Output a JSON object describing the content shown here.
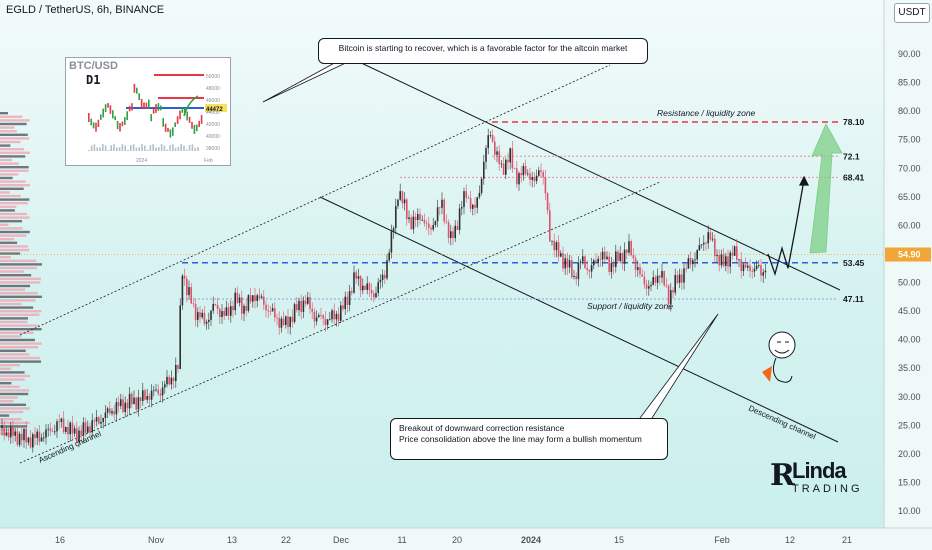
{
  "header": {
    "title": "EGLD / TetherUS, 6h, BINANCE",
    "currency": "USDT"
  },
  "annotations": {
    "top_callout": "Bitcoin is starting to recover, which is a favorable factor for the altcoin market",
    "bottom_callout_line1": "Breakout of downward correction resistance",
    "bottom_callout_line2": "Price consolidation above the line may form a bullish momentum",
    "resistance_zone": "Resistance / liquidity zone",
    "support_zone": "Support / liquidity zone",
    "ascending_channel": "Ascending channel",
    "descending_channel": "Descending channel"
  },
  "inset": {
    "title": "BTC/USD",
    "timeframe": "D1",
    "price_tag": "44472",
    "ticks": [
      "50000",
      "48000",
      "46000",
      "44000",
      "42000",
      "40000",
      "38000"
    ],
    "xlabels": [
      "2024",
      "Feb"
    ]
  },
  "logo": {
    "mark": "R",
    "line1": "Linda",
    "line2": "TRADING"
  },
  "colors": {
    "up": "#2f2f2f",
    "down": "#e0506a",
    "resistance": "#e53945",
    "support": "#2c5fd6",
    "current_price": "#f2a637",
    "arrow": "#7fcf86"
  },
  "chart_data": {
    "type": "candlestick",
    "y_axis": {
      "ticks": [
        "90.00",
        "85.00",
        "80.00",
        "75.00",
        "70.00",
        "65.00",
        "60.00",
        "55.00",
        "50.00",
        "45.00",
        "40.00",
        "35.00",
        "30.00",
        "25.00",
        "20.00",
        "15.00",
        "10.00"
      ],
      "current_price": "54.90"
    },
    "x_axis": {
      "ticks": [
        "16",
        "Nov",
        "13",
        "22",
        "Dec",
        "11",
        "20",
        "2024",
        "15",
        "Feb",
        "12",
        "21"
      ]
    },
    "levels": [
      {
        "label": "78.10",
        "value": 78.1,
        "style": "resistance"
      },
      {
        "label": "72.1",
        "value": 72.1,
        "style": "resistance-light"
      },
      {
        "label": "68.41",
        "value": 68.41,
        "style": "resistance-light"
      },
      {
        "label": "53.45",
        "value": 53.45,
        "style": "support"
      },
      {
        "label": "47.11",
        "value": 47.11,
        "style": "support-light"
      }
    ],
    "price_path": [
      [
        0,
        24.5
      ],
      [
        10,
        23.5
      ],
      [
        20,
        23.0
      ],
      [
        30,
        22.5
      ],
      [
        40,
        23.0
      ],
      [
        50,
        24.0
      ],
      [
        60,
        25.5
      ],
      [
        70,
        24.0
      ],
      [
        80,
        23.5
      ],
      [
        90,
        25.0
      ],
      [
        100,
        26.0
      ],
      [
        110,
        27.5
      ],
      [
        120,
        28.5
      ],
      [
        130,
        29.0
      ],
      [
        140,
        29.5
      ],
      [
        150,
        30.5
      ],
      [
        160,
        31.0
      ],
      [
        170,
        33.0
      ],
      [
        178,
        35.0
      ],
      [
        182,
        53.0
      ],
      [
        186,
        49.0
      ],
      [
        195,
        45.0
      ],
      [
        205,
        43.0
      ],
      [
        215,
        46.0
      ],
      [
        225,
        44.0
      ],
      [
        235,
        47.0
      ],
      [
        245,
        45.5
      ],
      [
        255,
        48.0
      ],
      [
        265,
        46.0
      ],
      [
        275,
        44.0
      ],
      [
        285,
        42.5
      ],
      [
        295,
        45.0
      ],
      [
        305,
        47.0
      ],
      [
        315,
        44.0
      ],
      [
        325,
        43.5
      ],
      [
        335,
        44.0
      ],
      [
        345,
        46.0
      ],
      [
        355,
        51.0
      ],
      [
        365,
        49.0
      ],
      [
        375,
        48.0
      ],
      [
        385,
        52.0
      ],
      [
        392,
        58.0
      ],
      [
        398,
        66.0
      ],
      [
        405,
        63.0
      ],
      [
        412,
        60.0
      ],
      [
        420,
        62.0
      ],
      [
        428,
        59.0
      ],
      [
        435,
        61.0
      ],
      [
        442,
        64.0
      ],
      [
        450,
        57.0
      ],
      [
        458,
        61.0
      ],
      [
        466,
        66.0
      ],
      [
        474,
        62.0
      ],
      [
        480,
        67.0
      ],
      [
        486,
        73.0
      ],
      [
        490,
        77.0
      ],
      [
        496,
        72.0
      ],
      [
        502,
        70.0
      ],
      [
        510,
        72.0
      ],
      [
        518,
        68.0
      ],
      [
        526,
        70.0
      ],
      [
        534,
        67.0
      ],
      [
        540,
        71.0
      ],
      [
        545,
        66.0
      ],
      [
        550,
        58.0
      ],
      [
        558,
        55.0
      ],
      [
        566,
        53.5
      ],
      [
        574,
        51.0
      ],
      [
        582,
        54.0
      ],
      [
        590,
        52.0
      ],
      [
        600,
        55.0
      ],
      [
        610,
        53.0
      ],
      [
        620,
        54.5
      ],
      [
        630,
        56.0
      ],
      [
        640,
        51.0
      ],
      [
        650,
        49.0
      ],
      [
        660,
        52.0
      ],
      [
        668,
        47.5
      ],
      [
        676,
        50.0
      ],
      [
        684,
        52.0
      ],
      [
        692,
        54.0
      ],
      [
        700,
        56.0
      ],
      [
        708,
        58.5
      ],
      [
        716,
        55.0
      ],
      [
        724,
        53.0
      ],
      [
        732,
        55.5
      ],
      [
        740,
        53.5
      ],
      [
        748,
        52.0
      ],
      [
        756,
        53.0
      ],
      [
        762,
        51.0
      ],
      [
        768,
        55.0
      ]
    ],
    "projection": [
      [
        768,
        55.0
      ],
      [
        775,
        51.5
      ],
      [
        782,
        56.0
      ],
      [
        788,
        52.5
      ],
      [
        796,
        60.0
      ],
      [
        804,
        68.0
      ]
    ]
  }
}
